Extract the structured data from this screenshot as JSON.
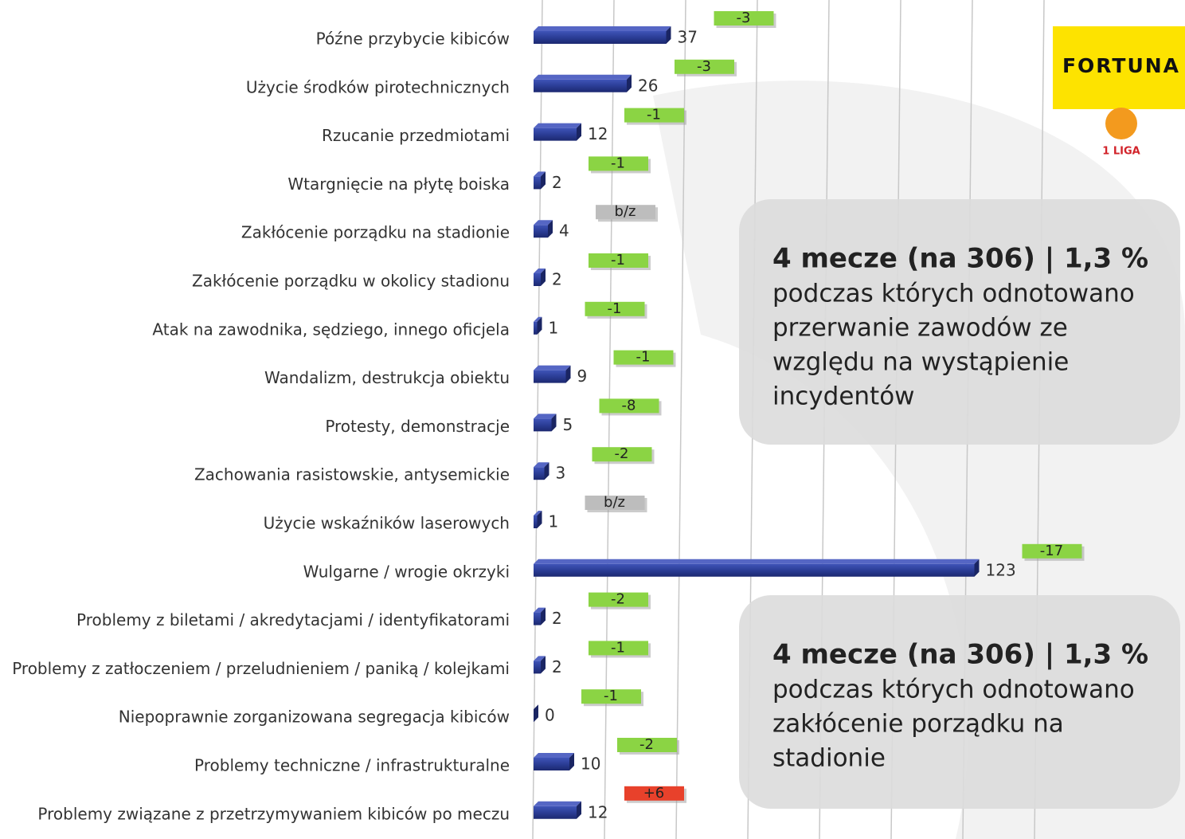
{
  "chart_data": {
    "type": "barh",
    "categories": [
      "Późne przybycie kibiców",
      "Użycie środków pirotechnicznych",
      "Rzucanie przedmiotami",
      "Wtargnięcie na płytę boiska",
      "Zakłócenie porządku na stadionie",
      "Zakłócenie porządku  w okolicy stadionu",
      "Atak na zawodnika, sędziego, innego oficjela",
      "Wandalizm, destrukcja obiektu",
      "Protesty, demonstracje",
      "Zachowania rasistowskie, antysemickie",
      "Użycie wskaźników laserowych",
      "Wulgarne / wrogie okrzyki",
      "Problemy z biletami / akredytacjami / identyfikatorami",
      "Problemy z zatłoczeniem / przeludnieniem / paniką / kolejkami",
      "Niepoprawnie zorganizowana segregacja kibiców",
      "Problemy techniczne / infrastrukturalne",
      "Problemy związane z przetrzymywaniem kibiców po meczu"
    ],
    "values": [
      37,
      26,
      12,
      2,
      4,
      2,
      1,
      9,
      5,
      3,
      1,
      123,
      2,
      2,
      0,
      10,
      12
    ],
    "changes": [
      "-3",
      "-3",
      "-1",
      "-1",
      "b/z",
      "-1",
      "-1",
      "-1",
      "-8",
      "-2",
      "b/z",
      "-17",
      "-2",
      "-1",
      "-1",
      "-2",
      "+6"
    ],
    "color": "#2b3d96",
    "xlim": [
      0,
      180
    ],
    "xticks": [
      0,
      20,
      40,
      60,
      80,
      100,
      120,
      140
    ],
    "grid": true
  },
  "notes": [
    {
      "headline": "4 mecze (na 306) | 1,3 %",
      "lines": [
        "podczas których odnotowano",
        "przerwanie zawodów ze",
        "względu na wystąpienie",
        "incydentów"
      ]
    },
    {
      "headline": "4 mecze (na 306) | 1,3 %",
      "lines": [
        "podczas których odnotowano",
        "zakłócenie porządku na",
        "stadionie"
      ]
    }
  ],
  "logo": {
    "brand": "FORTUNA",
    "league": "1 LIGA"
  }
}
